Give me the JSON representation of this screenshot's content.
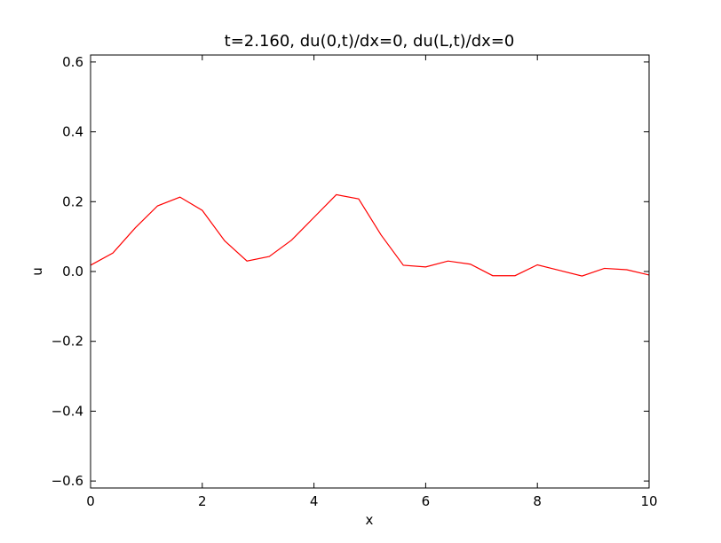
{
  "chart_data": {
    "type": "line",
    "title": "t=2.160, du(0,t)/dx=0, du(L,t)/dx=0",
    "xlabel": "x",
    "ylabel": "u",
    "xlim": [
      0,
      10
    ],
    "ylim": [
      -0.62,
      0.62
    ],
    "xticks": [
      0,
      2,
      4,
      6,
      8,
      10
    ],
    "xtick_labels": [
      "0",
      "2",
      "4",
      "6",
      "8",
      "10"
    ],
    "yticks": [
      -0.6,
      -0.4,
      -0.2,
      0.0,
      0.2,
      0.4,
      0.6
    ],
    "ytick_labels": [
      "−0.6",
      "−0.4",
      "−0.2",
      "0.0",
      "0.2",
      "0.4",
      "0.6"
    ],
    "grid": false,
    "legend": "none",
    "series": [
      {
        "color": "#ff0000",
        "x": [
          0,
          0.4,
          0.8,
          1.2,
          1.6,
          2.0,
          2.4,
          2.8,
          3.2,
          3.6,
          4.0,
          4.4,
          4.8,
          5.2,
          5.6,
          6.0,
          6.4,
          6.8,
          7.2,
          7.6,
          8.0,
          8.4,
          8.8,
          9.2,
          9.6,
          10.0
        ],
        "y": [
          0.018,
          0.053,
          0.125,
          0.188,
          0.213,
          0.175,
          0.088,
          0.03,
          0.043,
          0.09,
          0.155,
          0.22,
          0.208,
          0.105,
          0.018,
          0.013,
          0.03,
          0.021,
          -0.012,
          -0.012,
          0.019,
          0.003,
          -0.013,
          0.009,
          0.005,
          -0.01
        ]
      }
    ]
  }
}
